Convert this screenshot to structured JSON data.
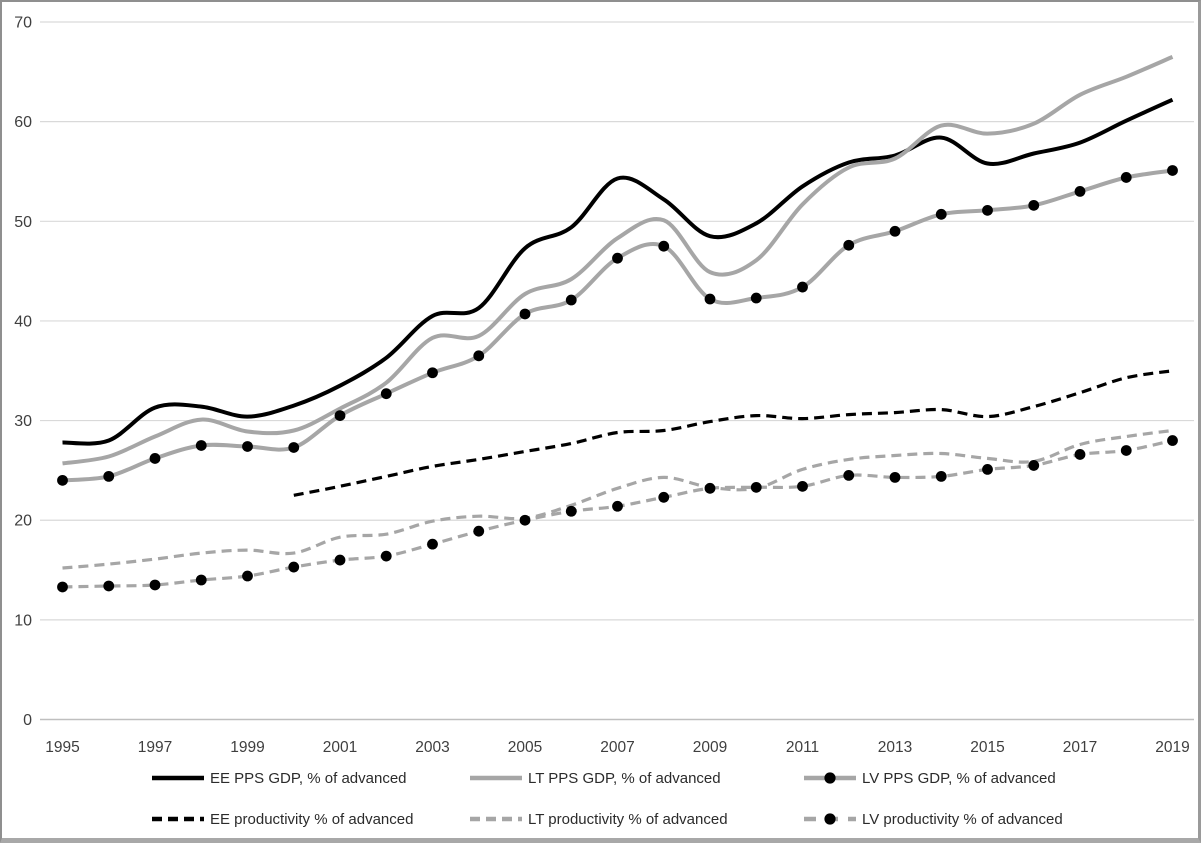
{
  "chart_data": {
    "type": "line",
    "title": "",
    "xlabel": "",
    "ylabel": "",
    "x": [
      1995,
      1996,
      1997,
      1998,
      1999,
      2000,
      2001,
      2002,
      2003,
      2004,
      2005,
      2006,
      2007,
      2008,
      2009,
      2010,
      2011,
      2012,
      2013,
      2014,
      2015,
      2016,
      2017,
      2018,
      2019
    ],
    "x_tick_labels": [
      "1995",
      "1997",
      "1999",
      "2001",
      "2003",
      "2005",
      "2007",
      "2009",
      "2011",
      "2013",
      "2015",
      "2017",
      "2019"
    ],
    "y_ticks": [
      0,
      10,
      20,
      30,
      40,
      50,
      60,
      70
    ],
    "ylim": [
      0,
      70
    ],
    "grid": "horizontal-only",
    "legend_position": "bottom, two rows x three columns",
    "colors": {
      "black": "#000000",
      "gray": "#a6a6a6",
      "gridline": "#d9d9d9",
      "axis_line": "#bfbfbf",
      "tick_text": "#3f3f3f",
      "frame_border": "#8f8f8f"
    },
    "series": [
      {
        "name": "EE PPS GDP, % of advanced",
        "style": "solid",
        "color": "black",
        "marker": "none",
        "values": [
          27.8,
          28.0,
          31.3,
          31.4,
          30.4,
          31.5,
          33.5,
          36.3,
          40.5,
          41.3,
          47.3,
          49.4,
          54.3,
          52.2,
          48.5,
          49.8,
          53.5,
          55.9,
          56.6,
          58.4,
          55.8,
          56.8,
          57.9,
          60.1,
          62.2
        ]
      },
      {
        "name": "LT PPS GDP, % of advanced",
        "style": "solid",
        "color": "gray",
        "marker": "none",
        "values": [
          25.7,
          26.4,
          28.4,
          30.1,
          28.9,
          29.0,
          31.2,
          33.8,
          38.3,
          38.5,
          42.7,
          44.2,
          48.3,
          50.1,
          44.9,
          46.1,
          51.7,
          55.4,
          56.3,
          59.6,
          58.8,
          59.8,
          62.7,
          64.5,
          66.5
        ]
      },
      {
        "name": "LV PPS GDP, % of advanced",
        "style": "solid",
        "color": "gray",
        "marker": "black-dot",
        "values": [
          24.0,
          24.4,
          26.2,
          27.5,
          27.4,
          27.3,
          30.5,
          32.7,
          34.8,
          36.5,
          40.7,
          42.1,
          46.3,
          47.5,
          42.2,
          42.3,
          43.4,
          47.6,
          49.0,
          50.7,
          51.1,
          51.6,
          53.0,
          54.4,
          55.1
        ]
      },
      {
        "name": "EE productivity % of advanced",
        "style": "dashed",
        "color": "black",
        "marker": "none",
        "values": [
          null,
          null,
          null,
          null,
          null,
          22.5,
          23.4,
          24.4,
          25.4,
          26.1,
          26.9,
          27.7,
          28.8,
          29.0,
          29.9,
          30.5,
          30.2,
          30.6,
          30.8,
          31.1,
          30.4,
          31.4,
          32.8,
          34.3,
          35.0
        ]
      },
      {
        "name": "LT productivity % of advanced",
        "style": "dashed",
        "color": "gray",
        "marker": "none",
        "values": [
          15.2,
          15.6,
          16.1,
          16.7,
          17.0,
          16.7,
          18.3,
          18.6,
          19.9,
          20.4,
          20.2,
          21.5,
          23.2,
          24.3,
          23.3,
          23.2,
          25.1,
          26.1,
          26.5,
          26.7,
          26.2,
          25.9,
          27.6,
          28.4,
          29.0
        ]
      },
      {
        "name": "LV productivity % of advanced",
        "style": "dashed",
        "color": "gray",
        "marker": "black-dot",
        "values": [
          13.3,
          13.4,
          13.5,
          14.0,
          14.4,
          15.3,
          16.0,
          16.4,
          17.6,
          18.9,
          20.0,
          20.9,
          21.4,
          22.3,
          23.2,
          23.3,
          23.4,
          24.5,
          24.3,
          24.4,
          25.1,
          25.5,
          26.6,
          27.0,
          28.0
        ]
      }
    ]
  }
}
